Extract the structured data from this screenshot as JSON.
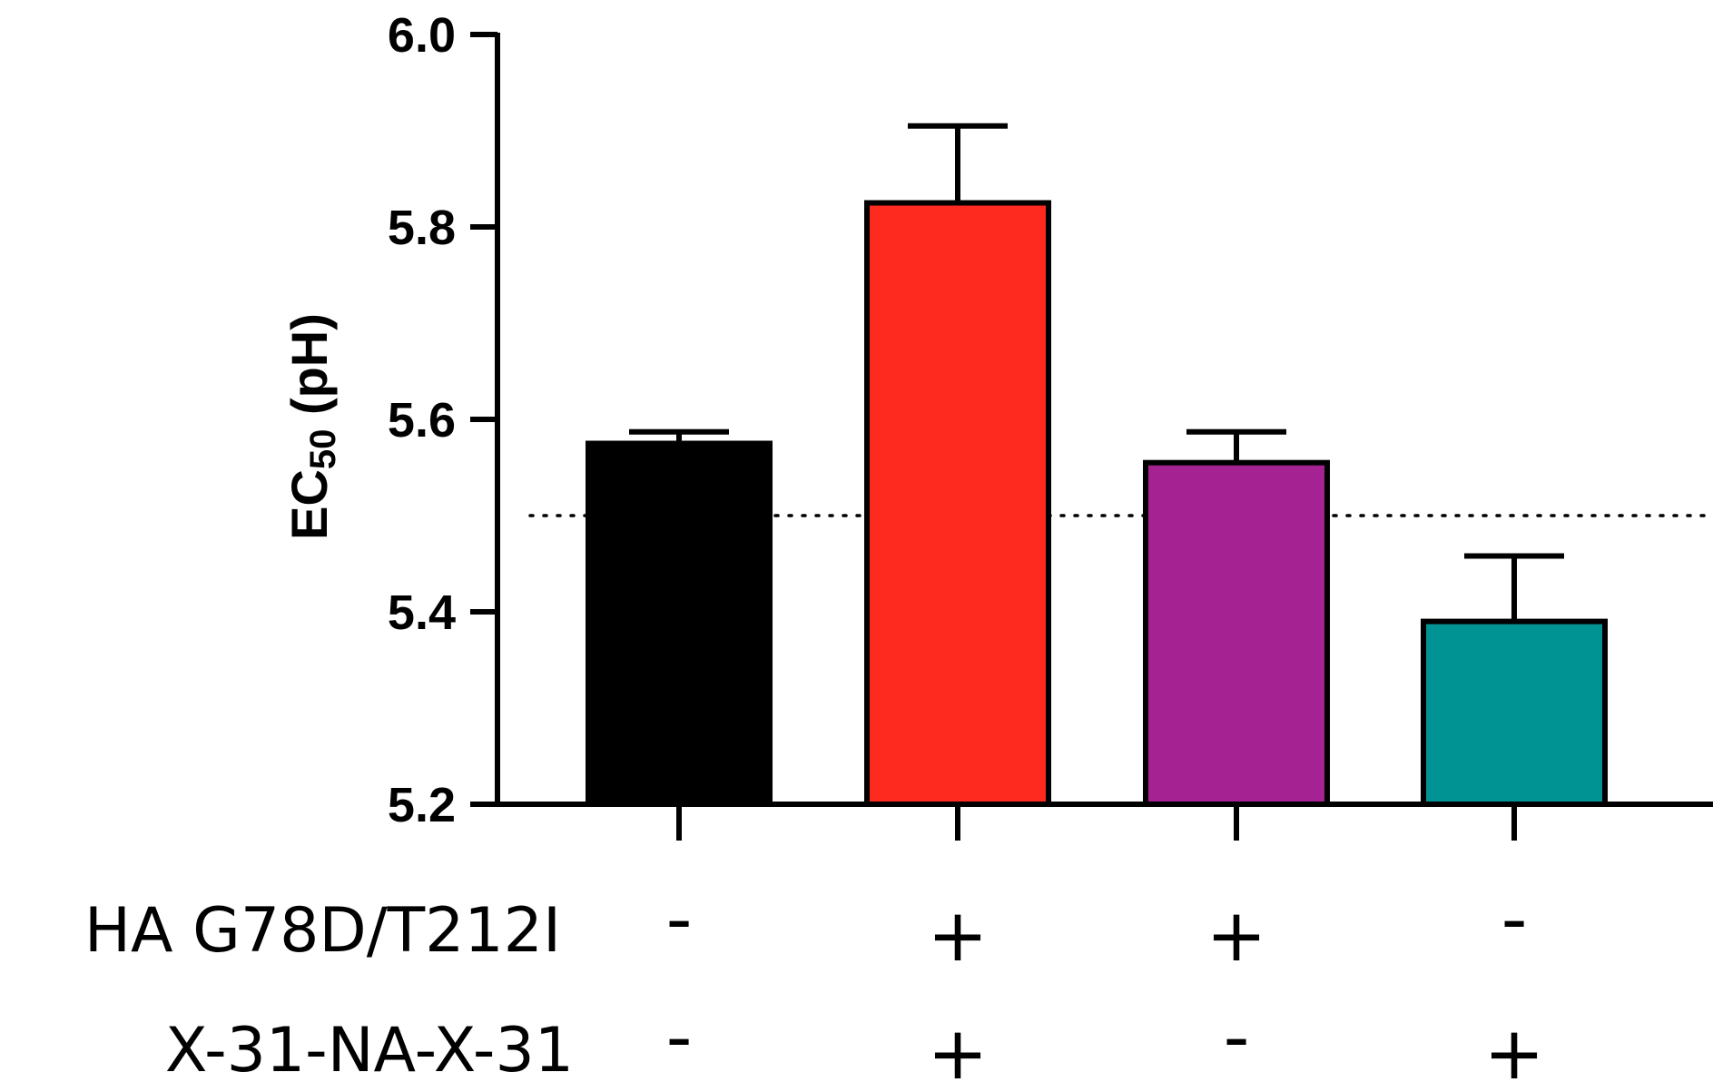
{
  "chart_data": {
    "type": "bar",
    "title": "",
    "ylabel": {
      "main": "EC",
      "sub": "50",
      "unit": " (pH)"
    },
    "ylim": [
      5.2,
      6.0
    ],
    "yticks": [
      "5.2",
      "5.4",
      "5.6",
      "5.8",
      "6.0"
    ],
    "reference_line": 5.5,
    "bars": [
      {
        "value": 5.575,
        "error": 0.012,
        "color": "#000000"
      },
      {
        "value": 5.825,
        "error": 0.08,
        "color": "#ff2a1f"
      },
      {
        "value": 5.555,
        "error": 0.032,
        "color": "#a52293"
      },
      {
        "value": 5.39,
        "error": 0.068,
        "color": "#009393"
      }
    ],
    "conditions": [
      {
        "label": "HA G78D/T212I",
        "signs": [
          "-",
          "+",
          "+",
          "-"
        ]
      },
      {
        "label": "X-31-NA-X-31",
        "signs": [
          "-",
          "+",
          "-",
          "+"
        ]
      }
    ]
  }
}
